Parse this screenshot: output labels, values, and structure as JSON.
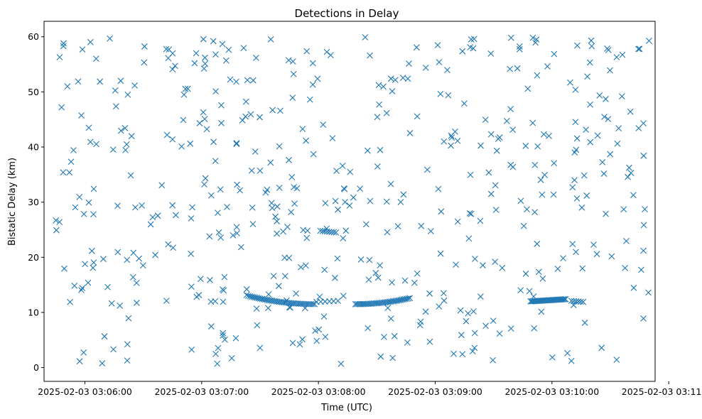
{
  "chart_data": {
    "type": "scatter",
    "title": "Detections in Delay",
    "xlabel": "Time (UTC)",
    "ylabel": "Bistatic Delay (km)",
    "marker": "x",
    "color": "#1f77b4",
    "grid": false,
    "legend": "none",
    "xlim": [
      "2025-02-03 03:05:39",
      "2025-02-03 03:10:53"
    ],
    "ylim": [
      -2.5,
      62.8
    ],
    "xticks": [
      "2025-02-03 03:06:00",
      "2025-02-03 03:07:00",
      "2025-02-03 03:08:00",
      "2025-02-03 03:09:00",
      "2025-02-03 03:10:00",
      "2025-02-03 03:11:00"
    ],
    "yticks": [
      "0",
      "10",
      "20",
      "30",
      "40",
      "50",
      "60"
    ],
    "tracks": [
      {
        "t_start": "2025-02-03 03:07:24",
        "t_end": "2025-02-03 03:07:58",
        "delay_start": 13.0,
        "delay_end": 11.5,
        "points": 40,
        "curve": "convex"
      },
      {
        "t_start": "2025-02-03 03:07:59",
        "t_end": "2025-02-03 03:08:10",
        "delay_start": 11.9,
        "delay_end": 12.1,
        "points": 6,
        "curve": "flat"
      },
      {
        "t_start": "2025-02-03 03:08:01",
        "t_end": "2025-02-03 03:08:09",
        "delay_start": 24.8,
        "delay_end": 24.5,
        "points": 8,
        "curve": "flat"
      },
      {
        "t_start": "2025-02-03 03:08:19",
        "t_end": "2025-02-03 03:08:47",
        "delay_start": 11.5,
        "delay_end": 12.6,
        "points": 36,
        "curve": "concave"
      },
      {
        "t_start": "2025-02-03 03:09:49",
        "t_end": "2025-02-03 03:10:07",
        "delay_start": 12.0,
        "delay_end": 12.4,
        "points": 30,
        "curve": "flat"
      },
      {
        "t_start": "2025-02-03 03:10:10",
        "t_end": "2025-02-03 03:10:16",
        "delay_start": 12.1,
        "delay_end": 11.9,
        "points": 6,
        "curve": "flat"
      }
    ],
    "clutter": {
      "count": 470,
      "t_start": "2025-02-03 03:05:45",
      "t_end": "2025-02-03 03:10:50",
      "delay_min": 0.5,
      "delay_max": 60.0,
      "seed": 20250203
    },
    "sample_points": [
      {
        "t": "2025-02-03 03:05:47",
        "delay": 56.3
      },
      {
        "t": "2025-02-03 03:05:49",
        "delay": 58.8
      },
      {
        "t": "2025-02-03 03:05:48",
        "delay": 47.2
      },
      {
        "t": "2025-02-03 03:05:52",
        "delay": 35.4
      },
      {
        "t": "2025-02-03 03:06:02",
        "delay": 43.5
      },
      {
        "t": "2025-02-03 03:06:22",
        "delay": 49.5
      },
      {
        "t": "2025-02-03 03:06:45",
        "delay": 54.1
      },
      {
        "t": "2025-02-03 03:07:06",
        "delay": 59.2
      },
      {
        "t": "2025-02-03 03:07:08",
        "delay": 0.7
      },
      {
        "t": "2025-02-03 03:07:30",
        "delay": 35.7
      },
      {
        "t": "2025-02-03 03:07:54",
        "delay": 23.5
      },
      {
        "t": "2025-02-03 03:08:24",
        "delay": 59.9
      },
      {
        "t": "2025-02-03 03:08:32",
        "delay": 2.0
      },
      {
        "t": "2025-02-03 03:09:02",
        "delay": 55.4
      },
      {
        "t": "2025-02-03 03:09:20",
        "delay": 59.6
      },
      {
        "t": "2025-02-03 03:09:39",
        "delay": 59.8
      },
      {
        "t": "2025-02-03 03:09:52",
        "delay": 59.5
      },
      {
        "t": "2025-02-03 03:10:13",
        "delay": 58.4
      },
      {
        "t": "2025-02-03 03:10:29",
        "delay": 57.6
      },
      {
        "t": "2025-02-03 03:10:45",
        "delay": 57.8
      },
      {
        "t": "2025-02-03 03:10:47",
        "delay": 44.3
      },
      {
        "t": "2025-02-03 03:10:47",
        "delay": 21.2
      },
      {
        "t": "2025-02-03 03:10:47",
        "delay": 8.9
      },
      {
        "t": "2025-02-03 03:10:10",
        "delay": 1.2
      }
    ]
  }
}
